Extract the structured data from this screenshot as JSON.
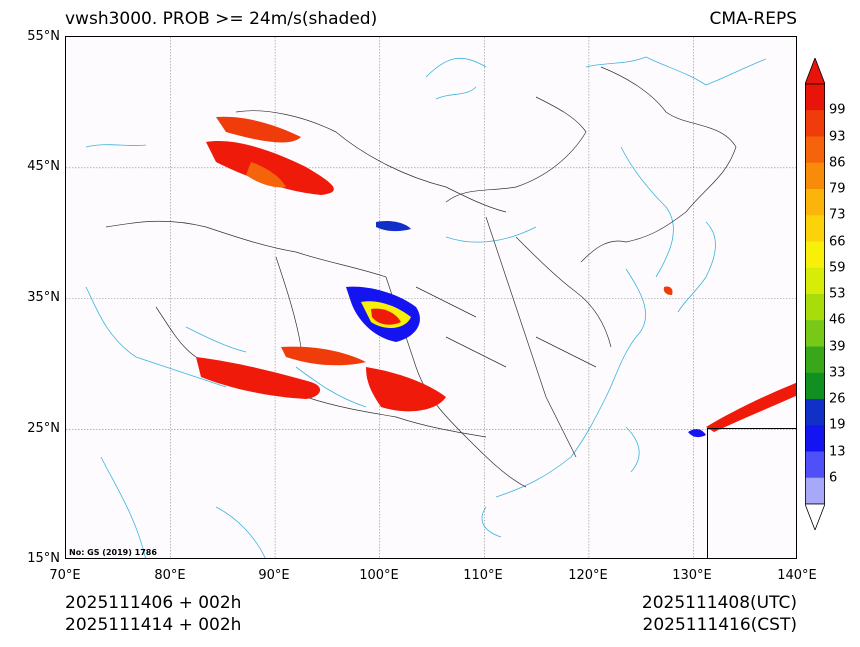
{
  "header": {
    "title_left": "vwsh3000. PROB >= 24m/s(shaded)",
    "title_right": "CMA-REPS"
  },
  "axes": {
    "lat_labels": [
      "55°N",
      "45°N",
      "35°N",
      "25°N",
      "15°N"
    ],
    "lon_labels": [
      "70°E",
      "80°E",
      "90°E",
      "100°E",
      "110°E",
      "120°E",
      "130°E",
      "140°E"
    ]
  },
  "colorbar": {
    "labels": [
      "99",
      "93",
      "86",
      "79",
      "73",
      "66",
      "59",
      "53",
      "46",
      "39",
      "33",
      "26",
      "19",
      "13",
      "6"
    ],
    "colors": [
      "#e8140a",
      "#f03c0a",
      "#f5640a",
      "#f88c0a",
      "#fab40a",
      "#fcd20a",
      "#f8f00a",
      "#d8ec0a",
      "#a8dc0a",
      "#78c81a",
      "#38a81a",
      "#109020",
      "#1030c8",
      "#1414f0",
      "#5050f8",
      "#a8a8f8"
    ]
  },
  "annotation": {
    "gs_note": "No: GS (2019) 1786"
  },
  "footer": {
    "left_line1": "2025111406  +  002h",
    "left_line2": "2025111414  +  002h",
    "right_line1": "2025111408(UTC)",
    "right_line2": "2025111416(CST)"
  }
}
